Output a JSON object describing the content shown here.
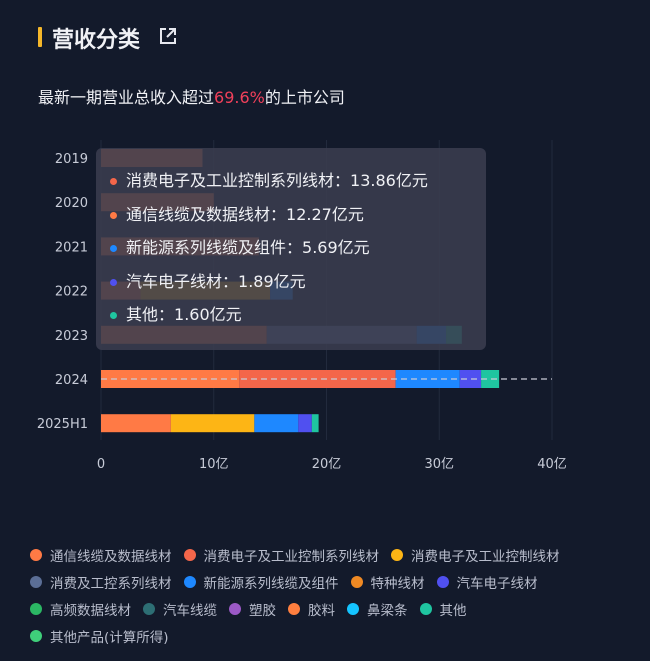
{
  "header": {
    "title": "营收分类",
    "subtitle_prefix": "最新一期营业总收入超过",
    "subtitle_highlight": "69.6%",
    "subtitle_suffix": "的上市公司",
    "highlight_color": "#f0405a"
  },
  "tooltip": {
    "category": "2024",
    "items": [
      {
        "label": "消费电子及工业控制系列线材：",
        "value": "13.86亿元",
        "color": "#f4664a"
      },
      {
        "label": "通信线缆及数据线材：",
        "value": "12.27亿元",
        "color": "#ff7a45"
      },
      {
        "label": "新能源系列线缆及组件：",
        "value": "5.69亿元",
        "color": "#1e88ff"
      },
      {
        "label": "汽车电子线材：",
        "value": "1.89亿元",
        "color": "#5050f0"
      },
      {
        "label": "其他：",
        "value": "1.60亿元",
        "color": "#1fc5a0"
      }
    ]
  },
  "chart_data": {
    "type": "bar",
    "orientation": "horizontal",
    "stacked": true,
    "categories": [
      "2019",
      "2020",
      "2021",
      "2022",
      "2023",
      "2024",
      "2025H1"
    ],
    "xlim": [
      0,
      40
    ],
    "x_ticks": [
      "0",
      "10亿",
      "20亿",
      "30亿",
      "40亿"
    ],
    "x_tick_values": [
      0,
      10,
      20,
      30,
      40
    ],
    "grid": "vertical",
    "legend_position": "bottom",
    "unit": "亿元",
    "series": [
      {
        "name": "通信线缆及数据线材",
        "color": "#ff7a45",
        "values": [
          9.0,
          10.0,
          14.0,
          3.5,
          14.7,
          12.27,
          6.2
        ]
      },
      {
        "name": "消费电子及工业控制系列线材",
        "color": "#f4664a",
        "values": [
          0,
          0,
          0,
          0,
          0,
          13.86,
          0
        ]
      },
      {
        "name": "消费电子及工业控制线材",
        "color": "#fdb515",
        "values": [
          0,
          0,
          0,
          11.5,
          0,
          0,
          7.4
        ]
      },
      {
        "name": "消费及工控系列线材",
        "color": "#5b6e96",
        "values": [
          0,
          0,
          0,
          0,
          13.3,
          0,
          0
        ]
      },
      {
        "name": "新能源系列线缆及组件",
        "color": "#1e88ff",
        "values": [
          0,
          0,
          0,
          2.0,
          2.6,
          5.69,
          3.9
        ]
      },
      {
        "name": "特种线材",
        "color": "#f08a24",
        "values": [
          0,
          0,
          0,
          0,
          0,
          0,
          0
        ]
      },
      {
        "name": "汽车电子线材",
        "color": "#5050f0",
        "values": [
          0,
          0,
          0,
          0,
          0,
          1.89,
          1.2
        ]
      },
      {
        "name": "高频数据线材",
        "color": "#2bb764",
        "values": [
          0,
          0,
          0,
          0,
          0,
          0,
          0
        ]
      },
      {
        "name": "汽车线缆",
        "color": "#2d6e74",
        "values": [
          0,
          0,
          0,
          0,
          0,
          0,
          0
        ]
      },
      {
        "name": "塑胶",
        "color": "#9b59c6",
        "values": [
          0,
          0,
          0,
          0,
          0,
          0,
          0
        ]
      },
      {
        "name": "胶料",
        "color": "#ff7f3f",
        "values": [
          0,
          0,
          0,
          0,
          0,
          0,
          0
        ]
      },
      {
        "name": "鼻梁条",
        "color": "#14c4ff",
        "values": [
          0,
          0,
          0,
          0,
          0,
          0,
          0
        ]
      },
      {
        "name": "其他",
        "color": "#1fc5a0",
        "values": [
          0,
          0,
          0,
          0,
          1.4,
          1.6,
          0.6
        ]
      },
      {
        "name": "其他产品(计算所得)",
        "color": "#3fcf7a",
        "values": [
          0,
          0,
          0,
          0,
          0,
          0,
          0
        ]
      }
    ]
  }
}
